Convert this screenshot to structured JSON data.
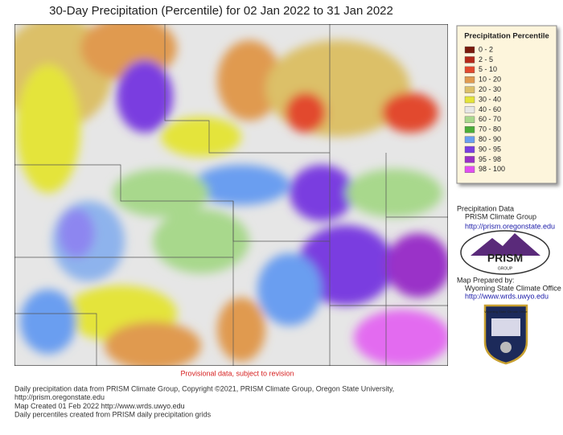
{
  "header": {
    "title": "30-Day Precipitation (Percentile) for 02 Jan 2022 to 31 Jan 2022"
  },
  "legend": {
    "title": "Precipitation Percentile",
    "items": [
      {
        "label": "0 - 2",
        "color": "#7a1a0c"
      },
      {
        "label": "2 - 5",
        "color": "#b52a1a"
      },
      {
        "label": "5 - 10",
        "color": "#e24a2e"
      },
      {
        "label": "10 - 20",
        "color": "#e09a50"
      },
      {
        "label": "20 - 30",
        "color": "#dcc068"
      },
      {
        "label": "30 - 40",
        "color": "#e4e43a"
      },
      {
        "label": "40 - 60",
        "color": "#e6e6e6"
      },
      {
        "label": "60 - 70",
        "color": "#a8d88c"
      },
      {
        "label": "70 - 80",
        "color": "#4cae38"
      },
      {
        "label": "80 - 90",
        "color": "#6a9ef0"
      },
      {
        "label": "90 - 95",
        "color": "#7a3ee0"
      },
      {
        "label": "95 - 98",
        "color": "#9a30c8"
      },
      {
        "label": "98 - 100",
        "color": "#e24ef2"
      }
    ]
  },
  "credits": {
    "data_label": "Precipitation Data",
    "data_org": "PRISM Climate Group",
    "data_url": "http://prism.oregonstate.edu",
    "logo": "PRISM",
    "logo_sub": "GROUP",
    "prepared_label": "Map Prepared by:",
    "prepared_org": "Wyoming State Climate Office",
    "prepared_url": "http://www.wrds.uwyo.edu",
    "badge": "Wyoming State Climate Office"
  },
  "notice": "Provisional data, subject to revision",
  "footer": [
    "Daily precipitation data from PRISM Climate Group, Copyright ©2021, PRISM Climate Group, Oregon State University,",
    "http://prism.oregonstate.edu",
    "Map Created 01 Feb 2022 http://www.wrds.uwyo.edu",
    "Daily percentiles created from PRISM daily precipitation grids"
  ]
}
